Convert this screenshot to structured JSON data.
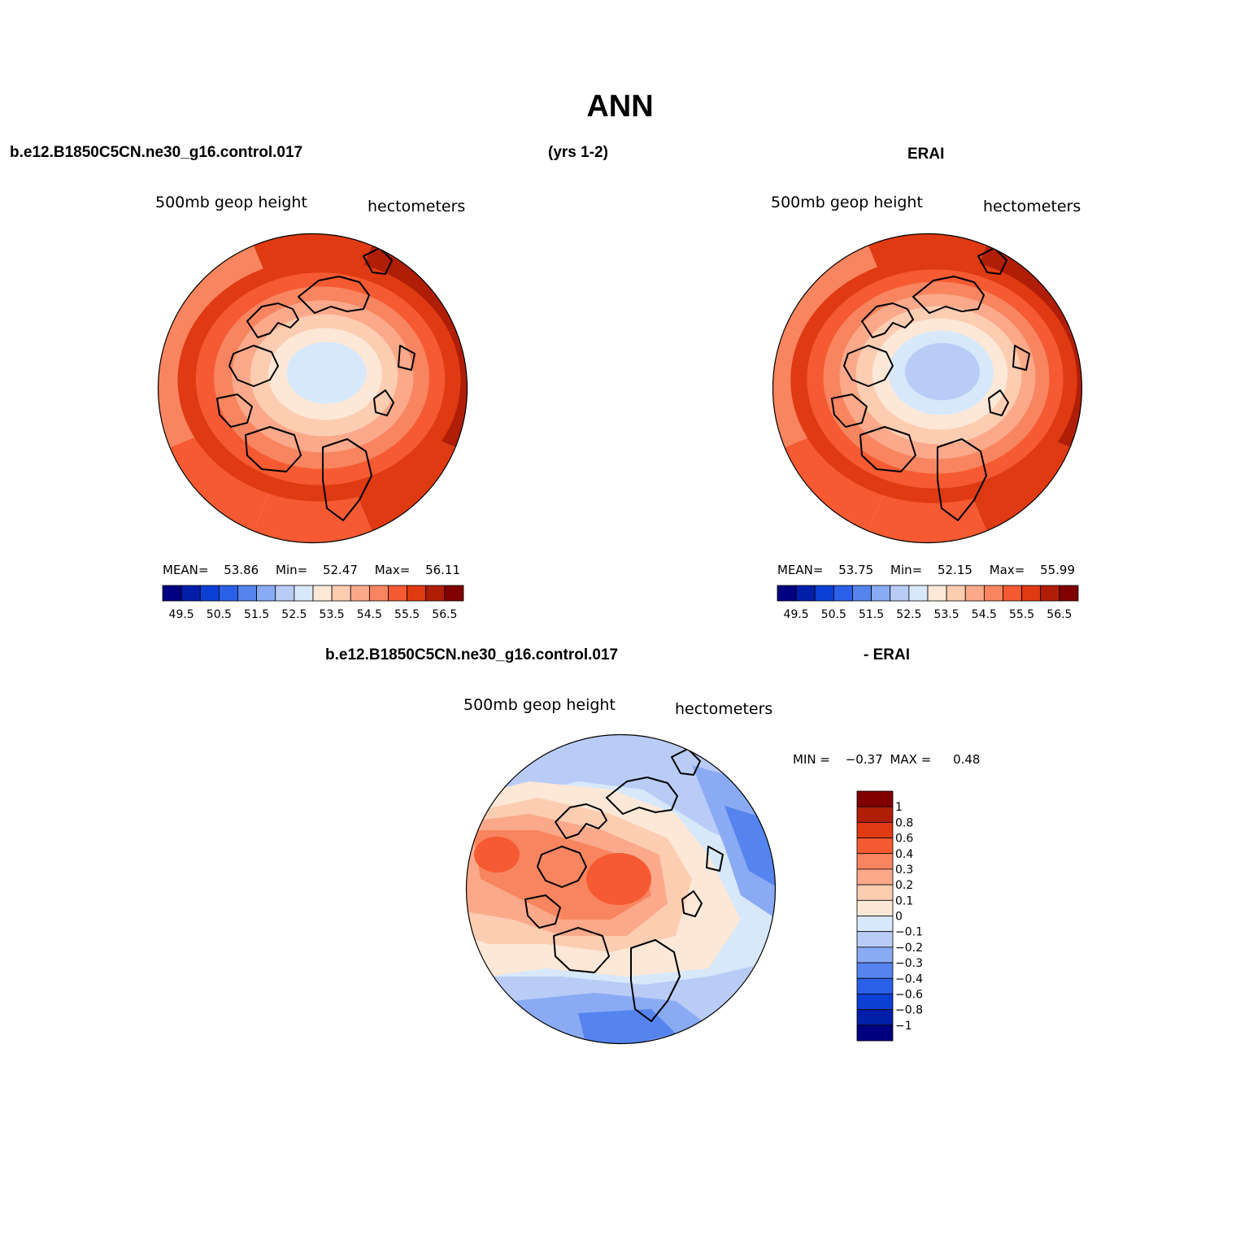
{
  "page": {
    "title": "ANN",
    "case_label": "b.e12.B1850C5CN.ne30_g16.control.017",
    "years_label": "(yrs 1-2)",
    "obs_label": "ERAI",
    "diff_case_label": "b.e12.B1850C5CN.ne30_g16.control.017",
    "diff_obs_label": "- ERAI"
  },
  "panels": {
    "model": {
      "variable": "500mb geop height",
      "units": "hectometers",
      "stats": {
        "mean_label": "MEAN=",
        "mean": "53.86",
        "min_label": "Min=",
        "min": "52.47",
        "max_label": "Max=",
        "max": "56.11"
      }
    },
    "obs": {
      "variable": "500mb geop height",
      "units": "hectometers",
      "stats": {
        "mean_label": "MEAN=",
        "mean": "53.75",
        "min_label": "Min=",
        "min": "52.15",
        "max_label": "Max=",
        "max": "55.99"
      }
    },
    "diff": {
      "variable": "500mb geop height",
      "units": "hectometers",
      "stats": {
        "min_label": "MIN =",
        "min": "−0.37",
        "max_label": "MAX =",
        "max": "0.48"
      }
    }
  },
  "colorbars": {
    "absolute": {
      "colors": [
        "#000080",
        "#001fa8",
        "#0c3fd4",
        "#2a5fe8",
        "#5584ee",
        "#8aaaf4",
        "#b9ccf6",
        "#d7e8fb",
        "#fde8d7",
        "#fdcdb2",
        "#fba98a",
        "#f8855f",
        "#f55a32",
        "#df3a12",
        "#b01e07",
        "#800000"
      ],
      "tick_labels": [
        "49.5",
        "50.5",
        "51.5",
        "52.5",
        "53.5",
        "54.5",
        "55.5",
        "56.5"
      ]
    },
    "difference": {
      "colors": [
        "#000080",
        "#001fa8",
        "#0c3fd4",
        "#2a5fe8",
        "#5584ee",
        "#8aaaf4",
        "#b9ccf6",
        "#d7e8fb",
        "#fde8d7",
        "#fdcdb2",
        "#fba98a",
        "#f8855f",
        "#f55a32",
        "#df3a12",
        "#b01e07",
        "#800000"
      ],
      "tick_labels": [
        "1",
        "0.8",
        "0.6",
        "0.4",
        "0.3",
        "0.2",
        "0.1",
        "0",
        "−0.1",
        "−0.2",
        "−0.3",
        "−0.4",
        "−0.6",
        "−0.8",
        "−1"
      ]
    }
  },
  "map_fields": {
    "model": {
      "outer_ring_values": [
        55.5,
        56.0,
        56.0,
        55.5,
        55.0,
        55.0,
        54.5,
        54.5
      ],
      "inner_levels": [
        55.5,
        55.0,
        54.5,
        54.0,
        53.5,
        53.0,
        52.5
      ]
    },
    "obs": {
      "outer_ring_values": [
        55.5,
        56.0,
        56.0,
        55.5,
        55.0,
        55.0,
        54.5,
        54.5
      ],
      "inner_levels": [
        55.5,
        55.0,
        54.5,
        54.0,
        53.5,
        53.0,
        52.5,
        52.2
      ]
    }
  }
}
